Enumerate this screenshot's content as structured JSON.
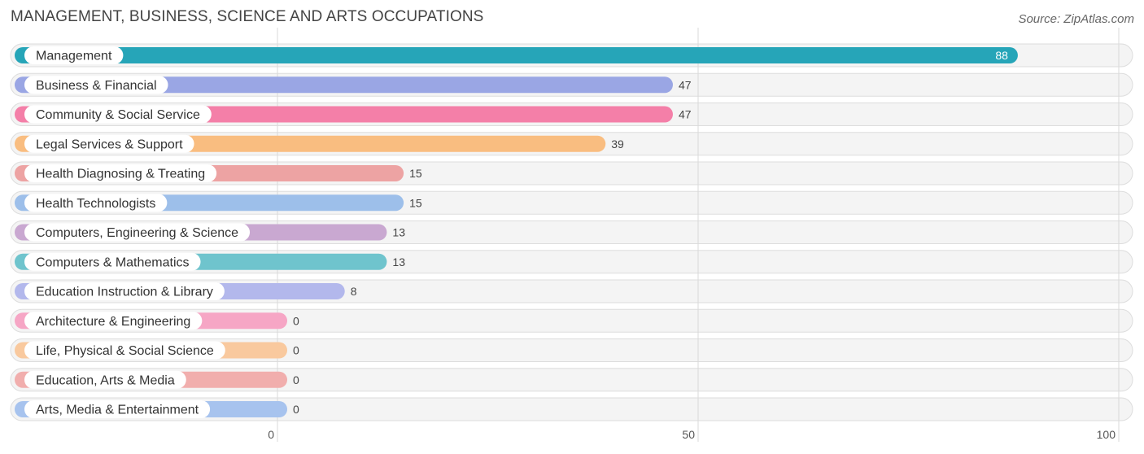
{
  "header": {
    "title": "MANAGEMENT, BUSINESS, SCIENCE AND ARTS OCCUPATIONS",
    "source": "Source: ZipAtlas.com"
  },
  "chart_data": {
    "type": "bar",
    "orientation": "horizontal",
    "title": "MANAGEMENT, BUSINESS, SCIENCE AND ARTS OCCUPATIONS",
    "xlim": [
      0,
      100
    ],
    "xticks": [
      0,
      50,
      100
    ],
    "grid": true,
    "categories": [
      "Management",
      "Business & Financial",
      "Community & Social Service",
      "Legal Services & Support",
      "Health Diagnosing & Treating",
      "Health Technologists",
      "Computers, Engineering & Science",
      "Computers & Mathematics",
      "Education Instruction & Library",
      "Architecture & Engineering",
      "Life, Physical & Social Science",
      "Education, Arts & Media",
      "Arts, Media & Entertainment"
    ],
    "values": [
      88,
      47,
      47,
      39,
      15,
      15,
      13,
      13,
      8,
      0,
      0,
      0,
      0
    ],
    "colors": [
      "#26a5b8",
      "#9aa6e4",
      "#f47fa8",
      "#f9bd80",
      "#eda3a3",
      "#9dbfea",
      "#c9a8d1",
      "#6fc4cd",
      "#b3b8ec",
      "#f6a6c5",
      "#f9c99e",
      "#f1aead",
      "#a7c3ee"
    ]
  }
}
